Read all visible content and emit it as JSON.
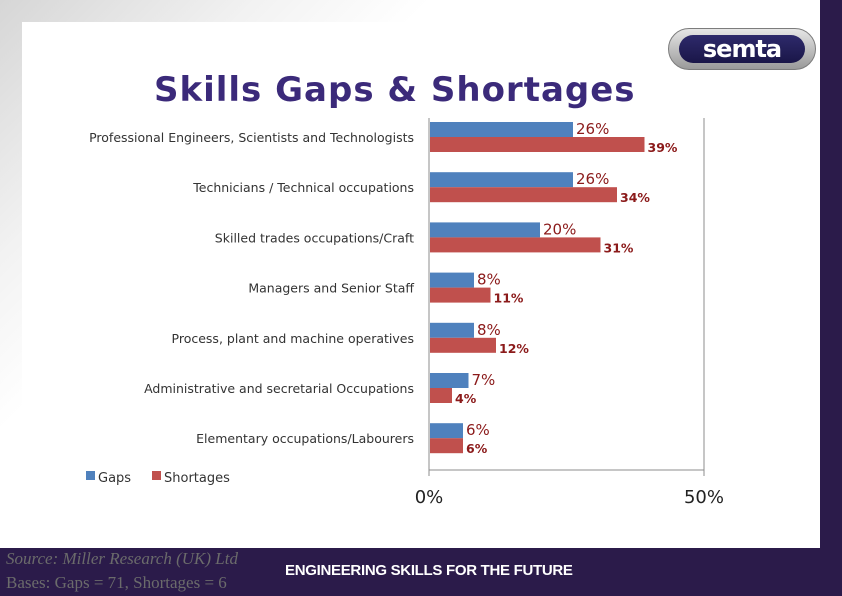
{
  "header": {
    "title": "Skills Gaps & Shortages",
    "logo_text": "semta"
  },
  "footer": {
    "tagline": "ENGINEERING SKILLS FOR THE FUTURE",
    "source": "Source: Miller Research (UK) Ltd",
    "bases": "Bases: Gaps = 71, Shortages = 6"
  },
  "colors": {
    "gaps": "#4f81bd",
    "shortages": "#c0504d",
    "footer_bg": "#2b1b4a",
    "title": "#3b2a7a"
  },
  "chart_data": {
    "type": "bar",
    "orientation": "horizontal",
    "title": "",
    "xlabel": "",
    "ylabel": "",
    "xlim": [
      0,
      50
    ],
    "x_ticks": [
      "0%",
      "50%"
    ],
    "grid": false,
    "legend_position": "bottom-left",
    "categories": [
      "Professional Engineers, Scientists and Technologists",
      "Technicians / Technical occupations",
      "Skilled trades occupations/Craft",
      "Managers and Senior Staff",
      "Process, plant and machine operatives",
      "Administrative and secretarial Occupations",
      "Elementary occupations/Labourers"
    ],
    "series": [
      {
        "name": "Gaps",
        "values": [
          26,
          26,
          20,
          8,
          8,
          7,
          6
        ],
        "labels": [
          "26%",
          "26%",
          "20%",
          "8%",
          "8%",
          "7%",
          "6%"
        ]
      },
      {
        "name": "Shortages",
        "values": [
          39,
          34,
          31,
          11,
          12,
          4,
          6
        ],
        "labels": [
          "39%",
          "34%",
          "31%",
          "11%",
          "12%",
          "4%",
          "6%"
        ]
      }
    ]
  }
}
